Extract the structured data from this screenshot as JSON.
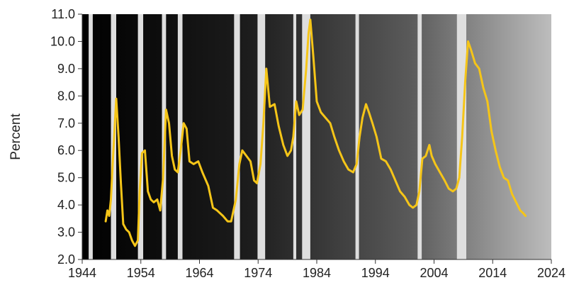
{
  "chart_data": {
    "type": "line",
    "title": "",
    "xlabel": "",
    "ylabel": "Percent",
    "xlim": [
      1944,
      2024
    ],
    "ylim": [
      2.0,
      11.0
    ],
    "x_ticks": [
      1944,
      1954,
      1964,
      1974,
      1984,
      1994,
      2004,
      2014,
      2024
    ],
    "x_tick_labels": [
      "1944",
      "1954",
      "1964",
      "1974",
      "1984",
      "1994",
      "2004",
      "2014",
      "2024"
    ],
    "y_ticks": [
      2.0,
      3.0,
      4.0,
      5.0,
      6.0,
      7.0,
      8.0,
      9.0,
      10.0,
      11.0
    ],
    "y_tick_labels": [
      "2.0",
      "3.0",
      "4.0",
      "5.0",
      "6.0",
      "7.0",
      "8.0",
      "9.0",
      "10.0",
      "11.0"
    ],
    "grid": false,
    "legend": "none",
    "background": "black-to-gray gradient",
    "shaded_periods": [
      [
        1945.1,
        1945.8
      ],
      [
        1948.9,
        1949.8
      ],
      [
        1953.5,
        1954.4
      ],
      [
        1957.6,
        1958.3
      ],
      [
        1960.3,
        1961.1
      ],
      [
        1969.9,
        1970.9
      ],
      [
        1973.9,
        1975.2
      ],
      [
        1980.0,
        1980.5
      ],
      [
        1981.5,
        1982.9
      ],
      [
        1990.6,
        1991.2
      ],
      [
        2001.2,
        2001.9
      ],
      [
        2007.9,
        2009.5
      ]
    ],
    "series": [
      {
        "color": "#f5c518",
        "x": [
          1948.0,
          1948.3,
          1948.6,
          1948.9,
          1949.2,
          1949.5,
          1949.8,
          1950.2,
          1950.6,
          1951.0,
          1951.5,
          1952.0,
          1952.5,
          1953.0,
          1953.5,
          1953.8,
          1954.2,
          1954.7,
          1955.2,
          1955.7,
          1956.2,
          1956.8,
          1957.3,
          1957.8,
          1958.3,
          1958.8,
          1959.3,
          1959.8,
          1960.3,
          1960.8,
          1961.3,
          1961.8,
          1962.3,
          1963.0,
          1963.8,
          1964.5,
          1965.5,
          1966.3,
          1967.0,
          1968.0,
          1968.8,
          1969.4,
          1970.2,
          1970.8,
          1971.3,
          1972.0,
          1972.7,
          1973.3,
          1973.8,
          1974.4,
          1974.9,
          1975.4,
          1976.0,
          1976.8,
          1977.5,
          1978.3,
          1979.0,
          1979.6,
          1980.0,
          1980.5,
          1981.0,
          1981.6,
          1982.2,
          1982.6,
          1982.9,
          1983.4,
          1984.0,
          1984.7,
          1985.5,
          1986.3,
          1987.0,
          1987.8,
          1988.6,
          1989.4,
          1990.2,
          1990.8,
          1991.3,
          1991.8,
          1992.4,
          1992.9,
          1993.5,
          1994.2,
          1995.0,
          1995.8,
          1996.6,
          1997.4,
          1998.2,
          1999.0,
          1999.8,
          2000.4,
          2001.0,
          2001.5,
          2002.0,
          2002.6,
          2003.2,
          2003.6,
          2004.2,
          2005.0,
          2005.8,
          2006.5,
          2007.2,
          2007.8,
          2008.3,
          2008.8,
          2009.3,
          2009.8,
          2010.3,
          2011.0,
          2011.7,
          2012.4,
          2013.1,
          2013.8,
          2014.5,
          2015.2,
          2015.9,
          2016.6,
          2017.3,
          2018.0,
          2018.7,
          2019.2,
          2019.6
        ],
        "y": [
          3.4,
          3.8,
          3.6,
          4.2,
          5.5,
          6.7,
          7.9,
          6.5,
          4.8,
          3.3,
          3.1,
          3.0,
          2.7,
          2.5,
          2.7,
          4.5,
          5.9,
          6.0,
          4.5,
          4.2,
          4.1,
          4.2,
          3.8,
          5.0,
          7.5,
          7.0,
          5.8,
          5.3,
          5.2,
          6.0,
          7.0,
          6.8,
          5.6,
          5.5,
          5.6,
          5.2,
          4.7,
          3.9,
          3.8,
          3.6,
          3.4,
          3.4,
          4.2,
          5.5,
          6.0,
          5.8,
          5.6,
          4.9,
          4.8,
          5.5,
          7.0,
          9.0,
          7.6,
          7.7,
          6.9,
          6.2,
          5.8,
          6.0,
          6.5,
          7.8,
          7.3,
          7.5,
          9.0,
          10.3,
          10.8,
          9.5,
          7.8,
          7.4,
          7.2,
          7.0,
          6.5,
          6.0,
          5.6,
          5.3,
          5.2,
          5.5,
          6.5,
          7.2,
          7.7,
          7.4,
          7.0,
          6.5,
          5.7,
          5.6,
          5.3,
          4.9,
          4.5,
          4.3,
          4.0,
          3.9,
          4.0,
          4.5,
          5.7,
          5.8,
          6.2,
          5.8,
          5.5,
          5.2,
          4.9,
          4.6,
          4.5,
          4.6,
          5.0,
          6.5,
          8.5,
          10.0,
          9.7,
          9.2,
          9.0,
          8.3,
          7.8,
          6.7,
          6.0,
          5.4,
          5.0,
          4.9,
          4.4,
          4.1,
          3.8,
          3.7,
          3.6
        ]
      }
    ]
  }
}
